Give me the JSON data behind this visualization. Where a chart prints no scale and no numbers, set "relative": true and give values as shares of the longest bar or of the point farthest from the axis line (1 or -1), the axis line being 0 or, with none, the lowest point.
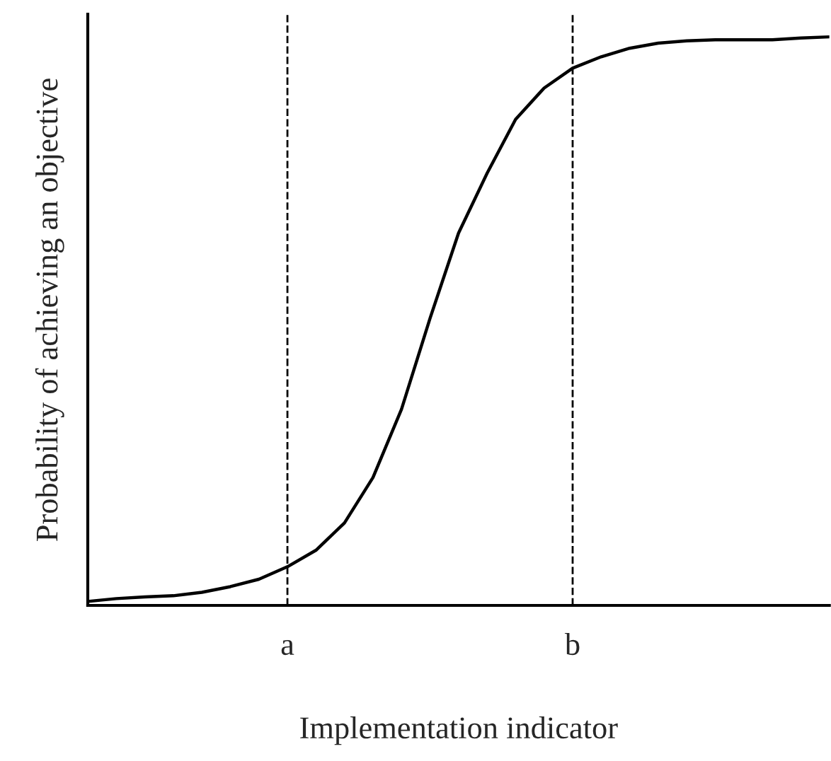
{
  "chart_data": {
    "type": "line",
    "relative": true,
    "xlabel": "Implementation indicator",
    "ylabel": "Probability of achieving an objective",
    "categories": [
      null,
      null,
      null,
      null,
      null,
      null,
      null,
      "a",
      null,
      null,
      null,
      null,
      null,
      null,
      null,
      null,
      null,
      "b",
      null,
      null,
      null,
      null,
      null,
      null,
      null,
      null,
      null
    ],
    "series": [
      {
        "color": "#000000",
        "values": [
          0.007,
          0.012,
          0.015,
          0.017,
          0.023,
          0.033,
          0.046,
          0.068,
          0.097,
          0.145,
          0.225,
          0.345,
          0.505,
          0.655,
          0.76,
          0.855,
          0.91,
          0.945,
          0.965,
          0.98,
          0.989,
          0.993,
          0.995,
          0.995,
          0.995,
          0.998,
          1.0
        ]
      }
    ],
    "marker": "none",
    "line_style": "solid",
    "grid": "x",
    "legend": false
  }
}
